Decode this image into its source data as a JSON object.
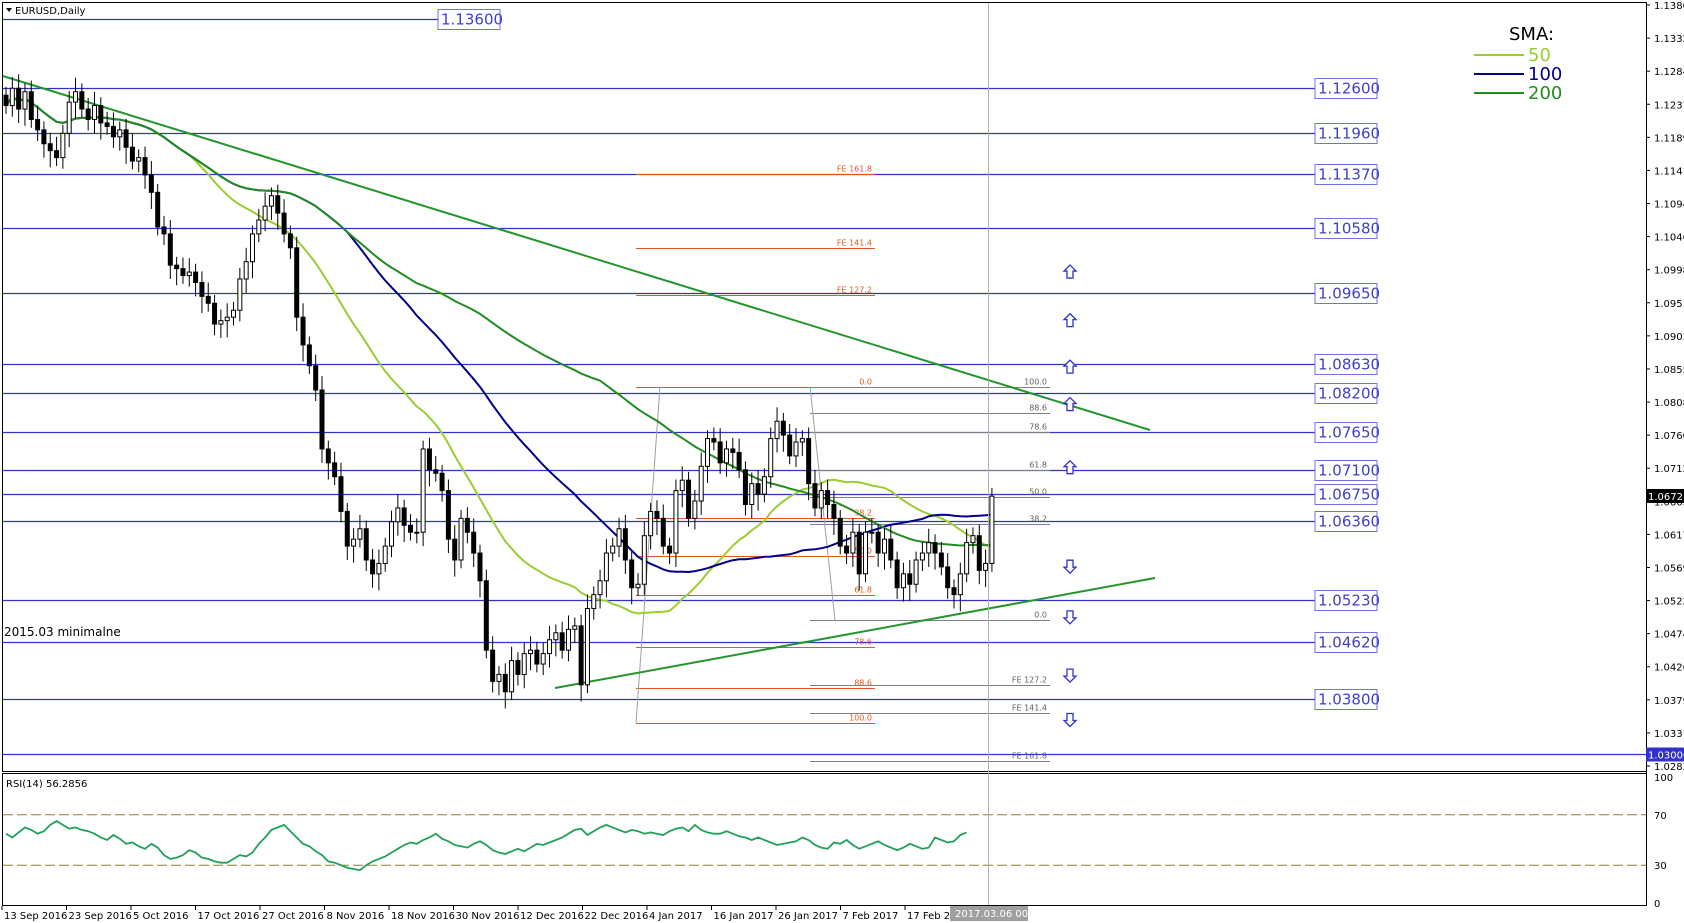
{
  "chart_title": "EURUSD,Daily",
  "annotation_minimum": "2015.03 minimalne",
  "cursor_time_label": "2017.03.06 00:00",
  "legend": {
    "title": "SMA:",
    "items": [
      {
        "label": "50",
        "color": "#9acd32"
      },
      {
        "label": "100",
        "color": "#00008b"
      },
      {
        "label": "200",
        "color": "#228b22"
      }
    ]
  },
  "colors": {
    "level": "#3232c8",
    "fib_red": "#e25822",
    "fib_gray": "#808080",
    "trend": "#22962b",
    "rsi": "#22a05a",
    "candle": "#000000"
  },
  "chart_data": {
    "type": "candlestick",
    "price_axis": {
      "min": 1.0283,
      "max": 1.138,
      "ticks": [
        "1.13800",
        "1.13320",
        "1.12840",
        "1.12370",
        "1.11890",
        "1.11410",
        "1.10940",
        "1.10460",
        "1.09980",
        "1.09510",
        "1.09030",
        "1.08550",
        "1.08080",
        "1.07600",
        "1.07120",
        "1.06650",
        "1.06170",
        "1.05690",
        "1.05220",
        "1.04740",
        "1.04260",
        "1.03790",
        "1.03310",
        "1.02830"
      ],
      "current_price": "1.06721"
    },
    "time_axis": {
      "labels": [
        "13 Sep 2016",
        "23 Sep 2016",
        "5 Oct 2016",
        "17 Oct 2016",
        "27 Oct 2016",
        "8 Nov 2016",
        "18 Nov 2016",
        "30 Nov 2016",
        "12 Dec 2016",
        "22 Dec 2016",
        "4 Jan 2017",
        "16 Jan 2017",
        "26 Jan 2017",
        "7 Feb 2017",
        "17 Feb 2017"
      ]
    },
    "closes": [
      1.1235,
      1.126,
      1.123,
      1.1255,
      1.1215,
      1.12,
      1.118,
      1.117,
      1.116,
      1.1195,
      1.124,
      1.1255,
      1.123,
      1.1215,
      1.1235,
      1.121,
      1.1205,
      1.119,
      1.12,
      1.1175,
      1.1155,
      1.116,
      1.1135,
      1.111,
      1.106,
      1.105,
      1.1005,
      1.1,
      1.099,
      1.0995,
      1.098,
      1.096,
      1.095,
      1.092,
      1.0925,
      1.093,
      1.094,
      1.0985,
      1.101,
      1.105,
      1.107,
      1.109,
      1.1105,
      1.108,
      1.105,
      1.103,
      1.093,
      1.089,
      1.086,
      1.0825,
      1.074,
      1.072,
      1.07,
      1.065,
      1.06,
      1.061,
      1.0625,
      1.058,
      1.056,
      1.0575,
      1.06,
      1.0635,
      1.0655,
      1.063,
      1.062,
      1.062,
      1.074,
      1.071,
      1.0705,
      1.068,
      1.061,
      1.058,
      1.064,
      1.062,
      1.059,
      1.055,
      1.045,
      1.0405,
      1.0415,
      1.039,
      1.0435,
      1.0415,
      1.0445,
      1.045,
      1.043,
      1.0445,
      1.0465,
      1.0475,
      1.045,
      1.048,
      1.0485,
      1.04,
      1.051,
      1.053,
      1.055,
      1.059,
      1.06,
      1.0625,
      1.058,
      1.054,
      1.0545,
      1.0615,
      1.065,
      1.064,
      1.06,
      1.059,
      1.068,
      1.0695,
      1.064,
      1.0665,
      1.0715,
      1.0755,
      1.075,
      1.072,
      1.074,
      1.0735,
      1.071,
      1.066,
      1.069,
      1.0675,
      1.07,
      1.0755,
      1.078,
      1.076,
      1.073,
      1.075,
      1.0755,
      1.069,
      1.0655,
      1.068,
      1.066,
      1.064,
      1.06,
      1.059,
      1.062,
      1.056,
      1.062,
      1.062,
      1.059,
      1.061,
      1.058,
      1.054,
      1.056,
      1.0545,
      1.058,
      1.059,
      1.0605,
      1.059,
      1.057,
      1.054,
      1.053,
      1.056,
      1.0605,
      1.0615,
      1.0565,
      1.0575,
      1.0672
    ],
    "levels": [
      {
        "price": 1.136,
        "label": "1.13600"
      },
      {
        "price": 1.126,
        "label": "1.12600"
      },
      {
        "price": 1.1196,
        "label": "1.11960"
      },
      {
        "price": 1.1137,
        "label": "1.11370"
      },
      {
        "price": 1.1058,
        "label": "1.10580"
      },
      {
        "price": 1.0965,
        "label": "1.09650"
      },
      {
        "price": 1.0863,
        "label": "1.08630"
      },
      {
        "price": 1.082,
        "label": "1.08200"
      },
      {
        "price": 1.0765,
        "label": "1.07650"
      },
      {
        "price": 1.071,
        "label": "1.07100"
      },
      {
        "price": 1.0675,
        "label": "1.06750"
      },
      {
        "price": 1.0636,
        "label": "1.06360"
      },
      {
        "price": 1.0523,
        "label": "1.05230"
      },
      {
        "price": 1.0462,
        "label": "1.04620"
      },
      {
        "price": 1.038,
        "label": "1.03800"
      },
      {
        "price": 1.03,
        "label": "1.03000"
      }
    ],
    "fib_red_labels": [
      {
        "price": 1.1137,
        "label": "FE 161.8"
      },
      {
        "price": 1.1029,
        "label": "FE 141.4"
      },
      {
        "price": 1.0962,
        "label": "FE 127.2"
      },
      {
        "price": 1.083,
        "label": "0.0"
      },
      {
        "price": 1.064,
        "label": "38.2"
      },
      {
        "price": 1.0585,
        "label": "50.0"
      },
      {
        "price": 1.053,
        "label": "61.8"
      },
      {
        "price": 1.0455,
        "label": "78.6"
      },
      {
        "price": 1.0395,
        "label": "88.6"
      },
      {
        "price": 1.0345,
        "label": "100.0"
      }
    ],
    "fib_gray_labels": [
      {
        "price": 1.083,
        "label": "100.0"
      },
      {
        "price": 1.0792,
        "label": "88.6"
      },
      {
        "price": 1.0765,
        "label": "78.6"
      },
      {
        "price": 1.071,
        "label": "61.8"
      },
      {
        "price": 1.0671,
        "label": "50.0"
      },
      {
        "price": 1.0632,
        "label": "38.2"
      },
      {
        "price": 1.0493,
        "label": "0.0"
      },
      {
        "price": 1.04,
        "label": "FE 127.2"
      },
      {
        "price": 1.036,
        "label": "FE 141.4"
      },
      {
        "price": 1.029,
        "label": "FE 161.8"
      }
    ],
    "rsi": {
      "label": "RSI(14) 56.2856",
      "axis_ticks": [
        "100",
        "70",
        "30",
        "0"
      ],
      "levels": [
        70,
        30
      ],
      "values": [
        55,
        52,
        56,
        60,
        58,
        55,
        57,
        62,
        65,
        62,
        59,
        60,
        58,
        57,
        55,
        52,
        50,
        54,
        51,
        47,
        48,
        45,
        43,
        47,
        44,
        38,
        35,
        36,
        38,
        42,
        40,
        36,
        35,
        33,
        32,
        32,
        35,
        38,
        37,
        40,
        47,
        52,
        58,
        60,
        62,
        57,
        52,
        47,
        45,
        41,
        38,
        33,
        32,
        30,
        28,
        27,
        26,
        30,
        33,
        35,
        37,
        40,
        43,
        46,
        48,
        47,
        50,
        52,
        55,
        51,
        49,
        46,
        45,
        44,
        47,
        49,
        46,
        42,
        40,
        39,
        41,
        43,
        41,
        44,
        47,
        46,
        48,
        50,
        52,
        55,
        58,
        59,
        54,
        57,
        60,
        62,
        60,
        58,
        56,
        58,
        57,
        55,
        56,
        55,
        54,
        57,
        59,
        60,
        57,
        62,
        58,
        56,
        55,
        55,
        57,
        55,
        53,
        52,
        50,
        52,
        50,
        48,
        46,
        47,
        48,
        49,
        52,
        50,
        46,
        44,
        43,
        48,
        47,
        50,
        46,
        43,
        45,
        47,
        49,
        46,
        44,
        42,
        44,
        47,
        45,
        43,
        44,
        52,
        50,
        48,
        49,
        54,
        56
      ],
      "value": 56.2856
    },
    "sma": [
      {
        "name": "50"
      },
      {
        "name": "100"
      },
      {
        "name": "200"
      }
    ]
  }
}
